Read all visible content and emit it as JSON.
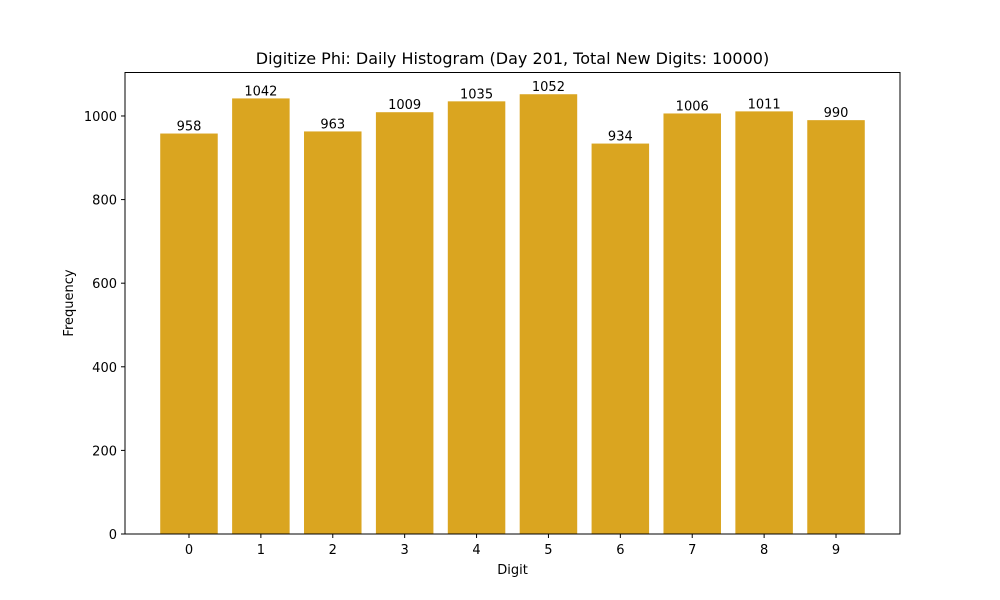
{
  "chart_data": {
    "type": "bar",
    "title": "Digitize Phi: Daily Histogram (Day 201, Total New Digits: 10000)",
    "xlabel": "Digit",
    "ylabel": "Frequency",
    "categories": [
      "0",
      "1",
      "2",
      "3",
      "4",
      "5",
      "6",
      "7",
      "8",
      "9"
    ],
    "values": [
      958,
      1042,
      963,
      1009,
      1035,
      1052,
      934,
      1006,
      1011,
      990
    ],
    "data_labels": [
      "958",
      "1042",
      "963",
      "1009",
      "1035",
      "1052",
      "934",
      "1006",
      "1011",
      "990"
    ],
    "yticks": [
      0,
      200,
      400,
      600,
      800,
      1000
    ],
    "ylim": [
      0,
      1104
    ],
    "xlim": [
      -0.89,
      9.89
    ],
    "grid": false,
    "legend": null,
    "bar_color": "#DAA520"
  }
}
